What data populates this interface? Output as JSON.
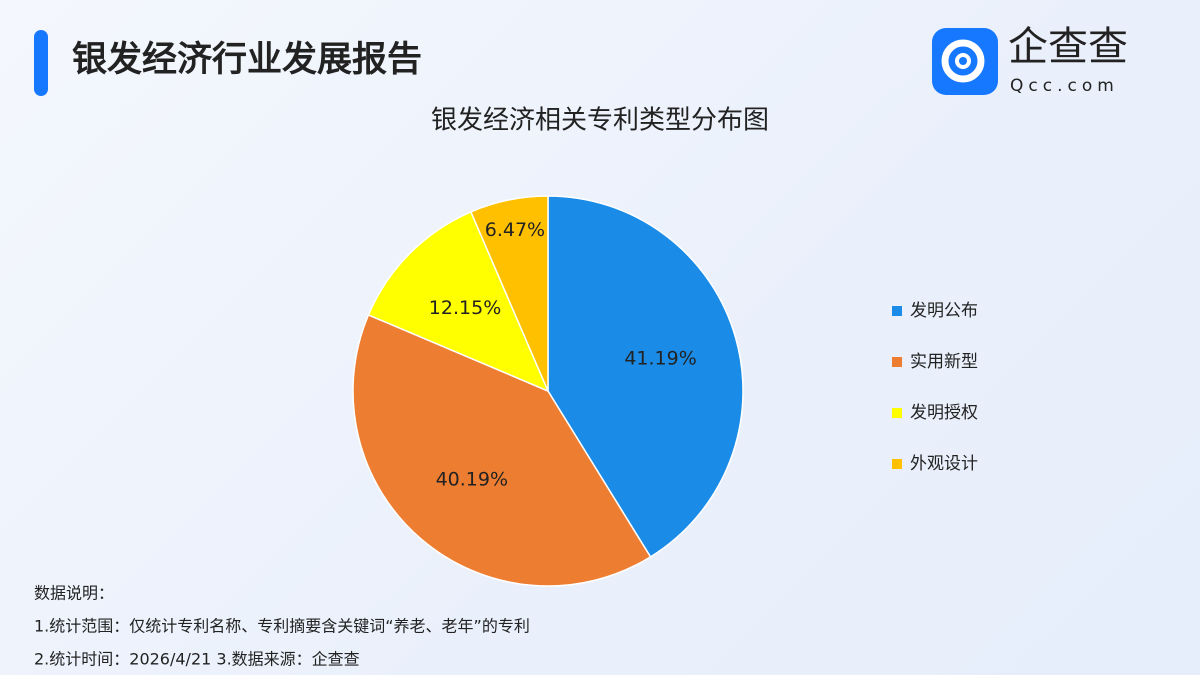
{
  "header": {
    "title": "银发经济行业发展报告"
  },
  "logo": {
    "name": "企查查",
    "domain": "Qcc.com"
  },
  "chart_data": {
    "type": "pie",
    "title": "银发经济相关专利类型分布图",
    "categories": [
      "发明公布",
      "实用新型",
      "发明授权",
      "外观设计"
    ],
    "values": [
      41.19,
      40.19,
      12.15,
      6.47
    ],
    "value_labels": [
      "41.19%",
      "40.19%",
      "12.15%",
      "6.47%"
    ],
    "colors": [
      "#1a8be6",
      "#ed7d31",
      "#ffff00",
      "#ffc000"
    ],
    "legend": "right"
  },
  "notes": [
    "数据说明：",
    "1.统计范围：仅统计专利名称、专利摘要含关键词“养老、老年”的专利",
    "2.统计时间：2026/4/21 3.数据来源：企查查"
  ]
}
